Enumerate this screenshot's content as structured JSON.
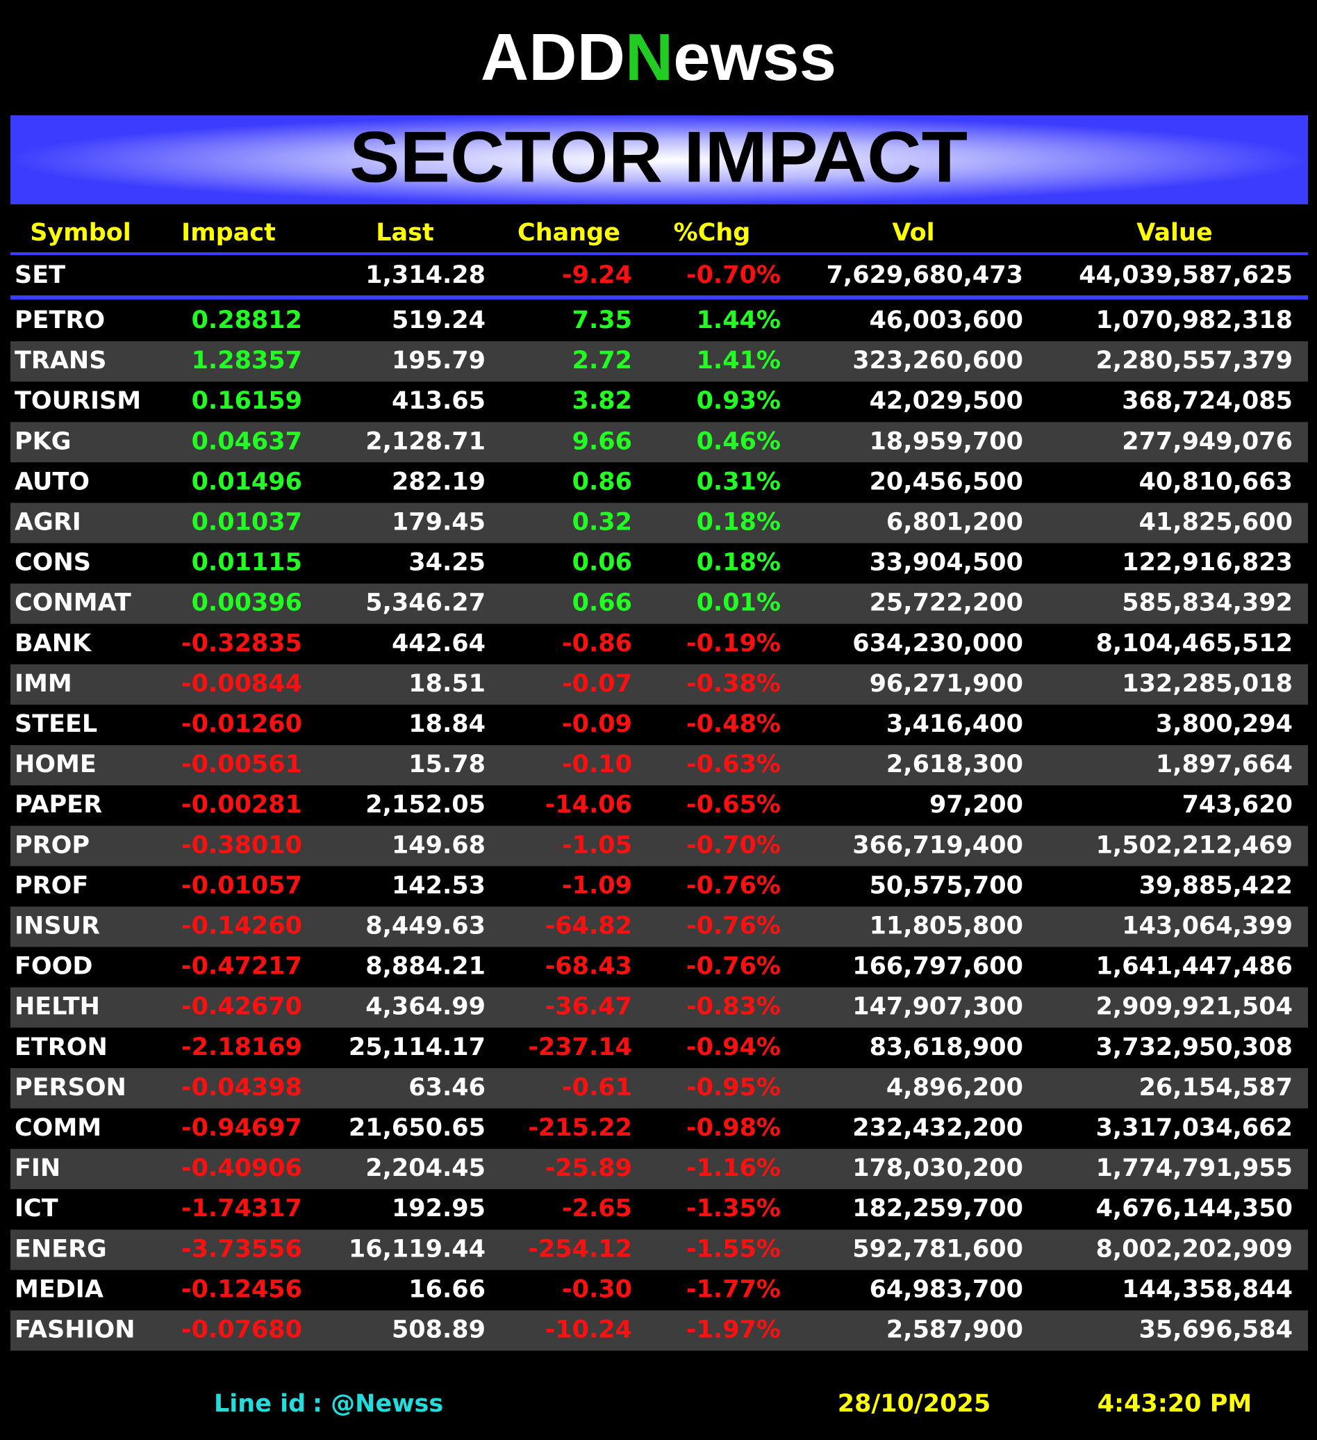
{
  "header": {
    "logo": [
      "ADD",
      "N",
      "ewss"
    ],
    "title": "SECTOR IMPACT"
  },
  "table": {
    "columns": [
      "Symbol",
      "Impact",
      "Last",
      "Change",
      "%Chg",
      "Vol",
      "Value"
    ],
    "index": {
      "symbol": "SET",
      "last": "1,314.28",
      "change": "-9.24",
      "pct": "-0.70%",
      "vol": "7,629,680,473",
      "value": "44,039,587,625"
    },
    "rows": [
      [
        "PETRO",
        "0.28812",
        "519.24",
        "7.35",
        "1.44%",
        "46,003,600",
        "1,070,982,318"
      ],
      [
        "TRANS",
        "1.28357",
        "195.79",
        "2.72",
        "1.41%",
        "323,260,600",
        "2,280,557,379"
      ],
      [
        "TOURISM",
        "0.16159",
        "413.65",
        "3.82",
        "0.93%",
        "42,029,500",
        "368,724,085"
      ],
      [
        "PKG",
        "0.04637",
        "2,128.71",
        "9.66",
        "0.46%",
        "18,959,700",
        "277,949,076"
      ],
      [
        "AUTO",
        "0.01496",
        "282.19",
        "0.86",
        "0.31%",
        "20,456,500",
        "40,810,663"
      ],
      [
        "AGRI",
        "0.01037",
        "179.45",
        "0.32",
        "0.18%",
        "6,801,200",
        "41,825,600"
      ],
      [
        "CONS",
        "0.01115",
        "34.25",
        "0.06",
        "0.18%",
        "33,904,500",
        "122,916,823"
      ],
      [
        "CONMAT",
        "0.00396",
        "5,346.27",
        "0.66",
        "0.01%",
        "25,722,200",
        "585,834,392"
      ],
      [
        "BANK",
        "-0.32835",
        "442.64",
        "-0.86",
        "-0.19%",
        "634,230,000",
        "8,104,465,512"
      ],
      [
        "IMM",
        "-0.00844",
        "18.51",
        "-0.07",
        "-0.38%",
        "96,271,900",
        "132,285,018"
      ],
      [
        "STEEL",
        "-0.01260",
        "18.84",
        "-0.09",
        "-0.48%",
        "3,416,400",
        "3,800,294"
      ],
      [
        "HOME",
        "-0.00561",
        "15.78",
        "-0.10",
        "-0.63%",
        "2,618,300",
        "1,897,664"
      ],
      [
        "PAPER",
        "-0.00281",
        "2,152.05",
        "-14.06",
        "-0.65%",
        "97,200",
        "743,620"
      ],
      [
        "PROP",
        "-0.38010",
        "149.68",
        "-1.05",
        "-0.70%",
        "366,719,400",
        "1,502,212,469"
      ],
      [
        "PROF",
        "-0.01057",
        "142.53",
        "-1.09",
        "-0.76%",
        "50,575,700",
        "39,885,422"
      ],
      [
        "INSUR",
        "-0.14260",
        "8,449.63",
        "-64.82",
        "-0.76%",
        "11,805,800",
        "143,064,399"
      ],
      [
        "FOOD",
        "-0.47217",
        "8,884.21",
        "-68.43",
        "-0.76%",
        "166,797,600",
        "1,641,447,486"
      ],
      [
        "HELTH",
        "-0.42670",
        "4,364.99",
        "-36.47",
        "-0.83%",
        "147,907,300",
        "2,909,921,504"
      ],
      [
        "ETRON",
        "-2.18169",
        "25,114.17",
        "-237.14",
        "-0.94%",
        "83,618,900",
        "3,732,950,308"
      ],
      [
        "PERSON",
        "-0.04398",
        "63.46",
        "-0.61",
        "-0.95%",
        "4,896,200",
        "26,154,587"
      ],
      [
        "COMM",
        "-0.94697",
        "21,650.65",
        "-215.22",
        "-0.98%",
        "232,432,200",
        "3,317,034,662"
      ],
      [
        "FIN",
        "-0.40906",
        "2,204.45",
        "-25.89",
        "-1.16%",
        "178,030,200",
        "1,774,791,955"
      ],
      [
        "ICT",
        "-1.74317",
        "192.95",
        "-2.65",
        "-1.35%",
        "182,259,700",
        "4,676,144,350"
      ],
      [
        "ENERG",
        "-3.73556",
        "16,119.44",
        "-254.12",
        "-1.55%",
        "592,781,600",
        "8,002,202,909"
      ],
      [
        "MEDIA",
        "-0.12456",
        "16.66",
        "-0.30",
        "-1.77%",
        "64,983,700",
        "144,358,844"
      ],
      [
        "FASHION",
        "-0.07680",
        "508.89",
        "-10.24",
        "-1.97%",
        "2,587,900",
        "35,696,584"
      ]
    ]
  },
  "footer": {
    "line_label": "Line id",
    "line_id": ": @Newss",
    "date": "28/10/2025",
    "time": "4:43:20 PM"
  }
}
